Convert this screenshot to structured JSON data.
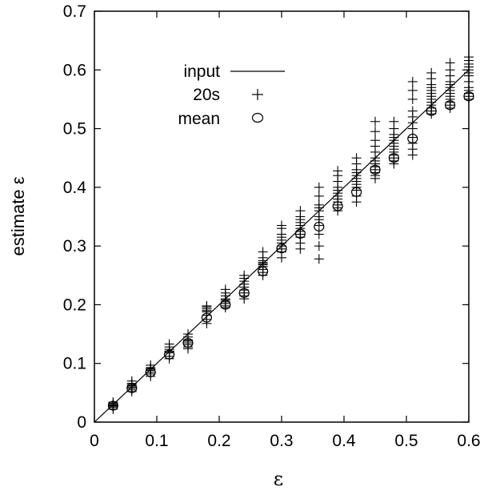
{
  "chart_data": {
    "type": "scatter",
    "xlabel": "ε",
    "ylabel": "estimate ε",
    "xlim": [
      0,
      0.6
    ],
    "ylim": [
      0,
      0.7
    ],
    "x_ticks": [
      "0",
      "0.1",
      "0.2",
      "0.3",
      "0.4",
      "0.5",
      "0.6"
    ],
    "y_ticks": [
      "0",
      "0.1",
      "0.2",
      "0.3",
      "0.4",
      "0.5",
      "0.6",
      "0.7"
    ],
    "legend_position": "top-left",
    "series": [
      {
        "name": "input",
        "marker": "line",
        "x": [
          0,
          0.6
        ],
        "y": [
          0,
          0.6
        ]
      },
      {
        "name": "20s",
        "marker": "plus",
        "points": [
          {
            "x": 0.03,
            "y": [
              0.022,
              0.025,
              0.027,
              0.028,
              0.029,
              0.03,
              0.032,
              0.034
            ]
          },
          {
            "x": 0.06,
            "y": [
              0.052,
              0.055,
              0.058,
              0.06,
              0.062,
              0.064,
              0.066,
              0.07
            ]
          },
          {
            "x": 0.09,
            "y": [
              0.078,
              0.082,
              0.085,
              0.088,
              0.09,
              0.091,
              0.093,
              0.097
            ]
          },
          {
            "x": 0.12,
            "y": [
              0.108,
              0.112,
              0.118,
              0.12,
              0.121,
              0.124,
              0.128,
              0.133
            ]
          },
          {
            "x": 0.15,
            "y": [
              0.125,
              0.128,
              0.132,
              0.135,
              0.138,
              0.14,
              0.145,
              0.15
            ]
          },
          {
            "x": 0.18,
            "y": [
              0.168,
              0.175,
              0.182,
              0.188,
              0.19,
              0.193,
              0.196,
              0.198
            ]
          },
          {
            "x": 0.21,
            "y": [
              0.195,
              0.198,
              0.202,
              0.205,
              0.208,
              0.21,
              0.215,
              0.22,
              0.226
            ]
          },
          {
            "x": 0.24,
            "y": [
              0.21,
              0.215,
              0.22,
              0.225,
              0.23,
              0.235,
              0.24,
              0.245,
              0.25
            ]
          },
          {
            "x": 0.27,
            "y": [
              0.25,
              0.255,
              0.26,
              0.265,
              0.268,
              0.27,
              0.272,
              0.275,
              0.28,
              0.29
            ]
          },
          {
            "x": 0.3,
            "y": [
              0.28,
              0.29,
              0.295,
              0.3,
              0.305,
              0.31,
              0.315,
              0.32,
              0.33,
              0.335
            ]
          },
          {
            "x": 0.33,
            "y": [
              0.295,
              0.305,
              0.315,
              0.32,
              0.325,
              0.33,
              0.335,
              0.34,
              0.345,
              0.35,
              0.36
            ]
          },
          {
            "x": 0.36,
            "y": [
              0.278,
              0.3,
              0.32,
              0.335,
              0.345,
              0.35,
              0.36,
              0.365,
              0.37,
              0.385,
              0.4
            ]
          },
          {
            "x": 0.39,
            "y": [
              0.36,
              0.365,
              0.37,
              0.375,
              0.38,
              0.385,
              0.39,
              0.395,
              0.4,
              0.41,
              0.42,
              0.428
            ]
          },
          {
            "x": 0.42,
            "y": [
              0.375,
              0.385,
              0.395,
              0.4,
              0.405,
              0.41,
              0.415,
              0.42,
              0.425,
              0.43,
              0.44,
              0.45
            ]
          },
          {
            "x": 0.45,
            "y": [
              0.415,
              0.42,
              0.425,
              0.43,
              0.435,
              0.44,
              0.445,
              0.45,
              0.46,
              0.47,
              0.48,
              0.495,
              0.512
            ]
          },
          {
            "x": 0.48,
            "y": [
              0.44,
              0.445,
              0.45,
              0.455,
              0.46,
              0.465,
              0.47,
              0.475,
              0.48,
              0.485,
              0.49,
              0.5,
              0.512
            ]
          },
          {
            "x": 0.51,
            "y": [
              0.455,
              0.465,
              0.475,
              0.485,
              0.5,
              0.51,
              0.52,
              0.53,
              0.55,
              0.565,
              0.58
            ]
          },
          {
            "x": 0.54,
            "y": [
              0.525,
              0.53,
              0.535,
              0.54,
              0.545,
              0.55,
              0.555,
              0.56,
              0.565,
              0.57,
              0.575,
              0.585,
              0.595
            ]
          },
          {
            "x": 0.57,
            "y": [
              0.535,
              0.54,
              0.545,
              0.55,
              0.555,
              0.56,
              0.565,
              0.57,
              0.575,
              0.58,
              0.59,
              0.6,
              0.612
            ]
          },
          {
            "x": 0.6,
            "y": [
              0.55,
              0.555,
              0.56,
              0.565,
              0.57,
              0.58,
              0.59,
              0.595,
              0.6,
              0.605,
              0.61,
              0.616,
              0.622
            ]
          }
        ]
      },
      {
        "name": "mean",
        "marker": "circle",
        "x": [
          0.03,
          0.06,
          0.09,
          0.12,
          0.15,
          0.18,
          0.21,
          0.24,
          0.27,
          0.3,
          0.33,
          0.36,
          0.39,
          0.42,
          0.45,
          0.48,
          0.51,
          0.54,
          0.57,
          0.6
        ],
        "y": [
          0.028,
          0.058,
          0.085,
          0.115,
          0.135,
          0.178,
          0.2,
          0.22,
          0.257,
          0.296,
          0.321,
          0.333,
          0.368,
          0.392,
          0.43,
          0.45,
          0.483,
          0.53,
          0.54,
          0.555
        ]
      }
    ]
  }
}
